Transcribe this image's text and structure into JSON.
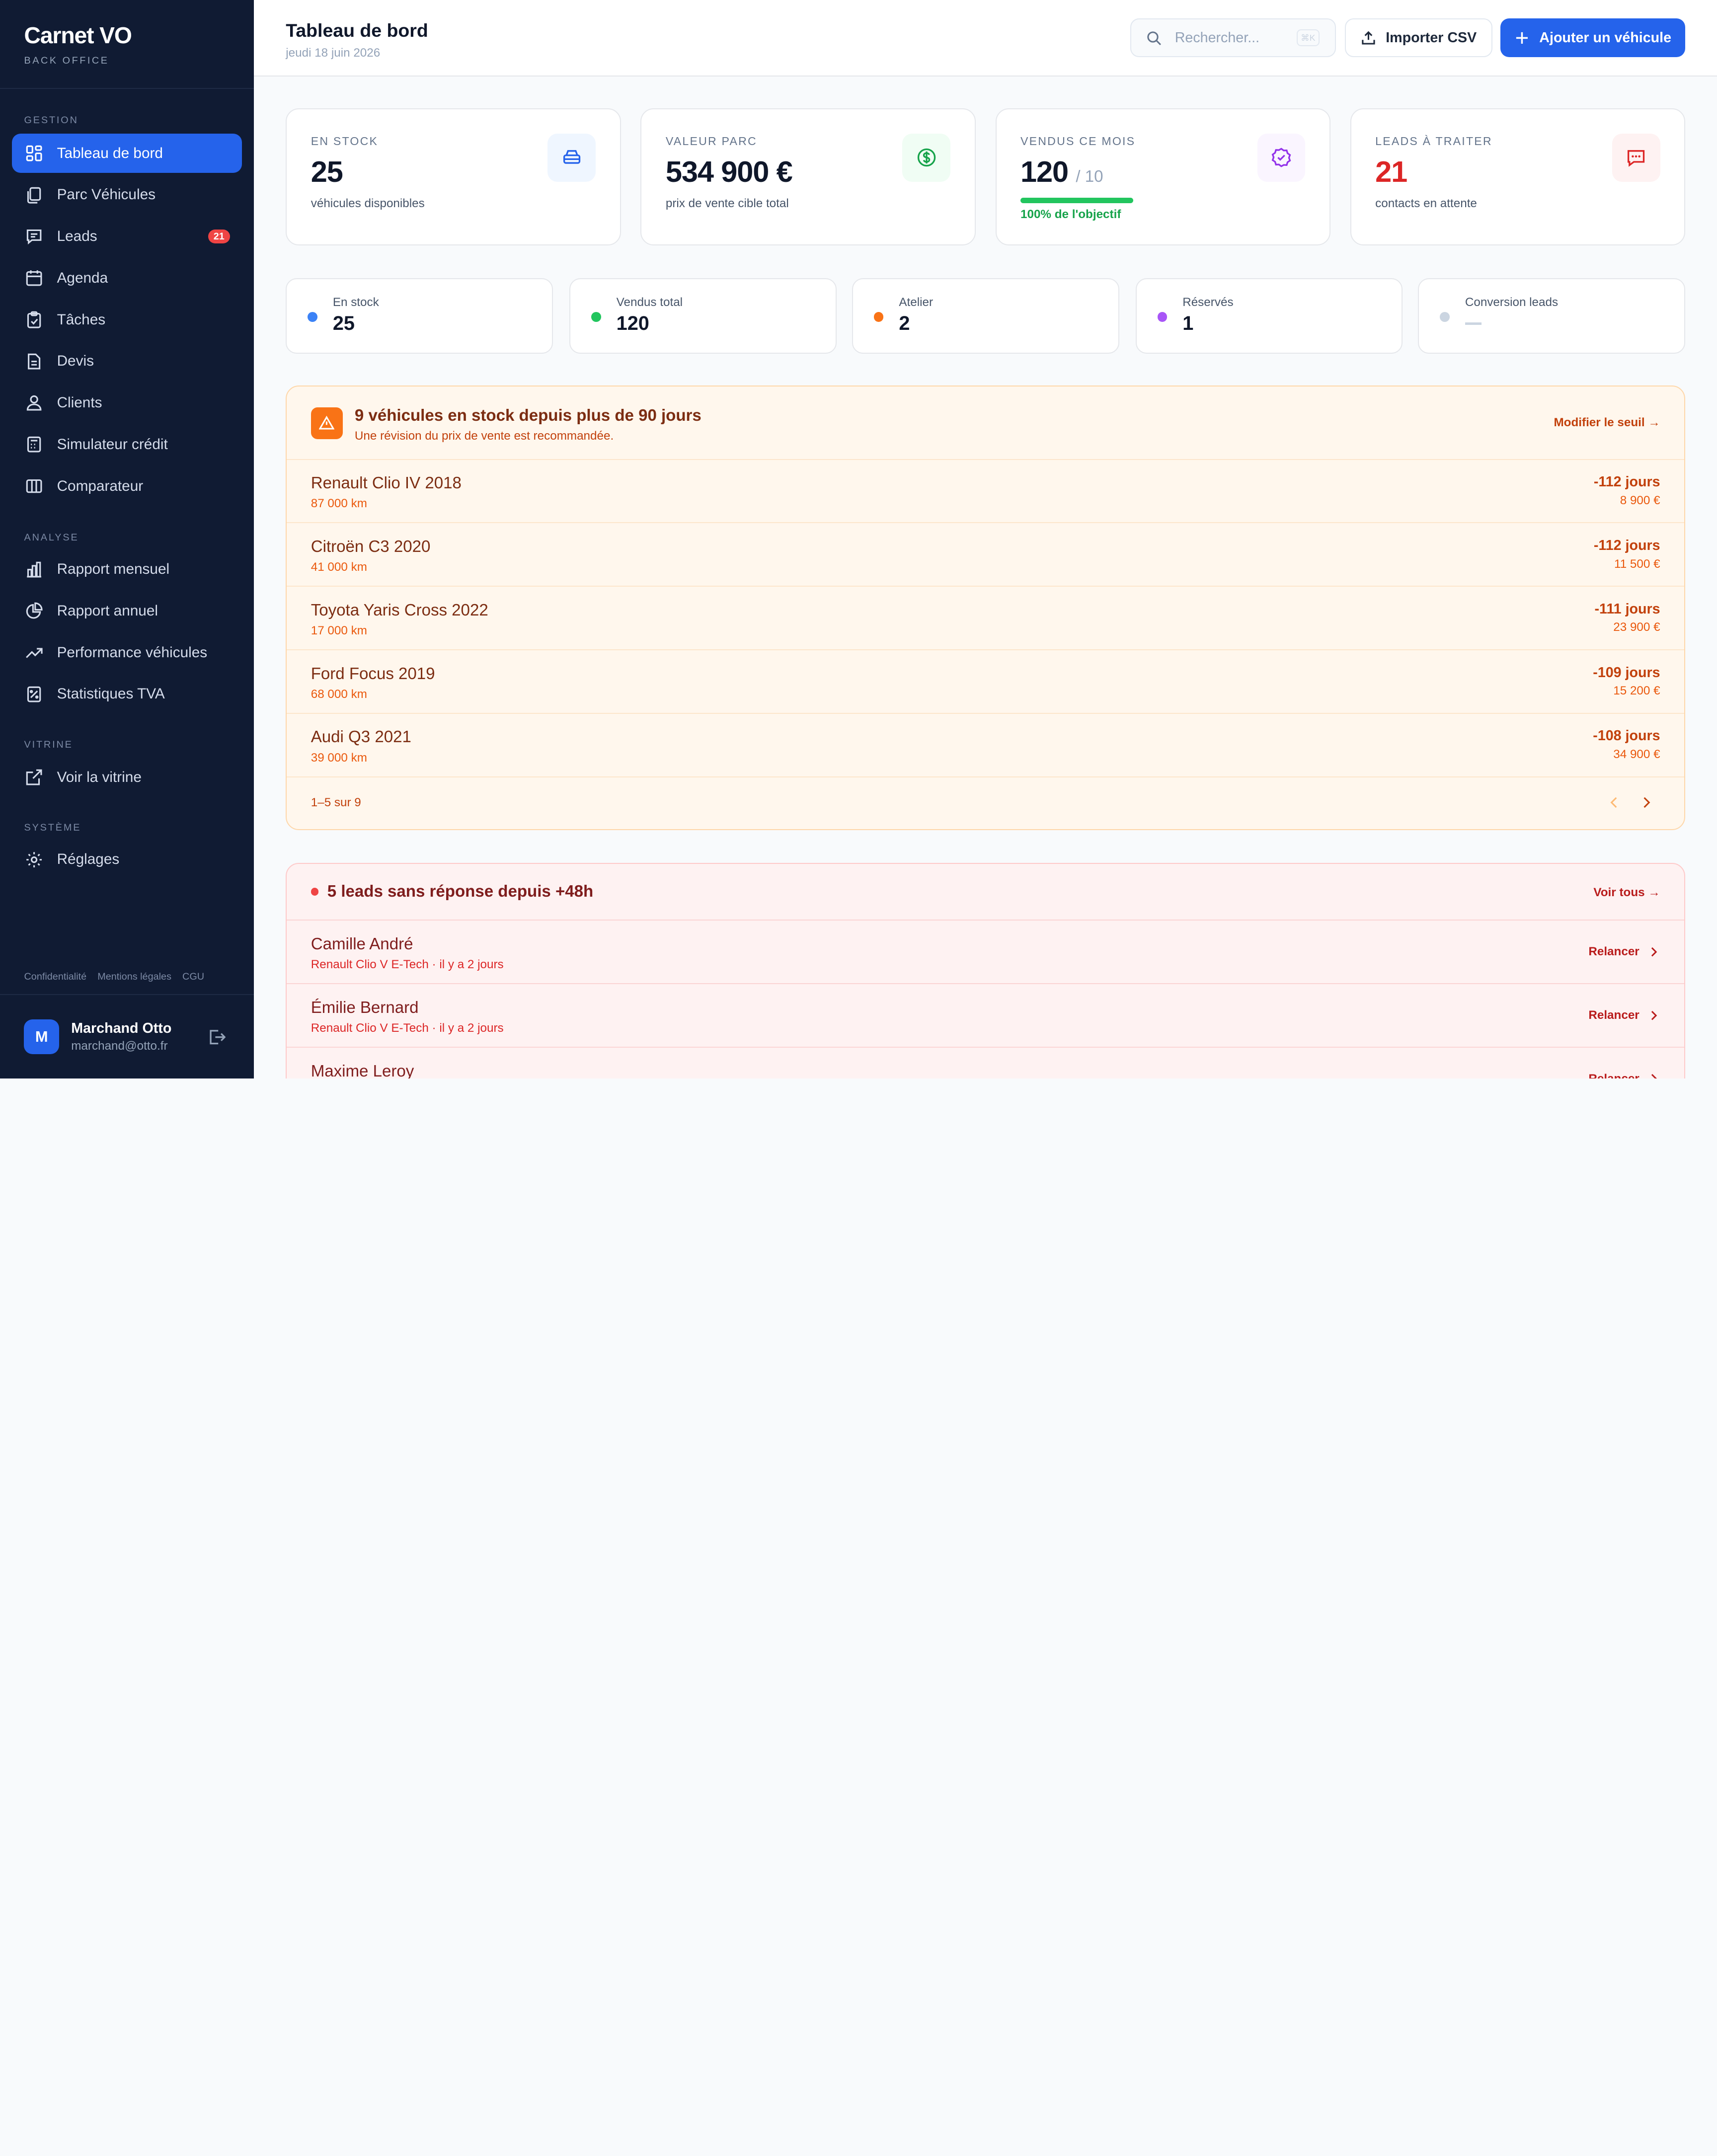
{
  "sidebar": {
    "brand": "Carnet VO",
    "brand_sub": "BACK OFFICE",
    "sections": {
      "gestion": "GESTION",
      "analyse": "ANALYSE",
      "vitrine": "VITRINE",
      "systeme": "SYSTÈME"
    },
    "items": [
      {
        "label": "Tableau de bord"
      },
      {
        "label": "Parc Véhicules"
      },
      {
        "label": "Leads",
        "badge": "21"
      },
      {
        "label": "Agenda"
      },
      {
        "label": "Tâches"
      },
      {
        "label": "Devis"
      },
      {
        "label": "Clients"
      },
      {
        "label": "Simulateur crédit"
      },
      {
        "label": "Comparateur"
      },
      {
        "label": "Rapport mensuel"
      },
      {
        "label": "Rapport annuel"
      },
      {
        "label": "Performance véhicules"
      },
      {
        "label": "Statistiques TVA"
      },
      {
        "label": "Voir la vitrine"
      },
      {
        "label": "Réglages"
      }
    ],
    "legal": [
      "Confidentialité",
      "Mentions légales",
      "CGU"
    ],
    "user": {
      "initial": "M",
      "name": "Marchand Otto",
      "email": "marchand@otto.fr"
    }
  },
  "header": {
    "title": "Tableau de bord",
    "date": "jeudi 18 juin 2026",
    "search_placeholder": "Rechercher...",
    "search_kbd": "⌘K",
    "import_label": "Importer CSV",
    "add_label": "Ajouter un véhicule"
  },
  "kpis": [
    {
      "label": "EN STOCK",
      "value": "25",
      "sub": "véhicules disponibles"
    },
    {
      "label": "VALEUR PARC",
      "value": "534 900 €",
      "sub": "prix de vente cible total"
    },
    {
      "label": "VENDUS CE MOIS",
      "value": "120",
      "of": "/ 10",
      "progress": 1.0,
      "progress_label": "100% de l'objectif"
    },
    {
      "label": "LEADS À TRAITER",
      "value": "21",
      "sub": "contacts en attente"
    }
  ],
  "stats": [
    {
      "label": "En stock",
      "value": "25",
      "color": "#3b82f6"
    },
    {
      "label": "Vendus total",
      "value": "120",
      "color": "#22c55e"
    },
    {
      "label": "Atelier",
      "value": "2",
      "color": "#f97316"
    },
    {
      "label": "Réservés",
      "value": "1",
      "color": "#a855f7"
    },
    {
      "label": "Conversion leads",
      "value": "",
      "color": "#cbd5e1"
    }
  ],
  "stock_alert": {
    "title": "9 véhicules en stock depuis plus de 90 jours",
    "subtitle": "Une révision du prix de vente est recommandée.",
    "link": "Modifier le seuil →",
    "rows": [
      {
        "name": "Renault Clio IV 2018",
        "km": "87 000 km",
        "days": "-112 jours",
        "price": "8 900 €"
      },
      {
        "name": "Citroën C3 2020",
        "km": "41 000 km",
        "days": "-112 jours",
        "price": "11 500 €"
      },
      {
        "name": "Toyota Yaris Cross 2022",
        "km": "17 000 km",
        "days": "-111 jours",
        "price": "23 900 €"
      },
      {
        "name": "Ford Focus 2019",
        "km": "68 000 km",
        "days": "-109 jours",
        "price": "15 200 €"
      },
      {
        "name": "Audi Q3 2021",
        "km": "39 000 km",
        "days": "-108 jours",
        "price": "34 900 €"
      }
    ],
    "pagination": "1–5 sur 9"
  },
  "leads_alert": {
    "title": "5 leads sans réponse depuis +48h",
    "link": "Voir tous →",
    "action": "Relancer",
    "rows": [
      {
        "name": "Camille André",
        "detail": "Renault Clio V E-Tech · il y a 2 jours"
      },
      {
        "name": "Émilie Bernard",
        "detail": "Renault Clio V E-Tech · il y a 2 jours"
      },
      {
        "name": "Maxime Leroy",
        "detail": ""
      }
    ]
  }
}
